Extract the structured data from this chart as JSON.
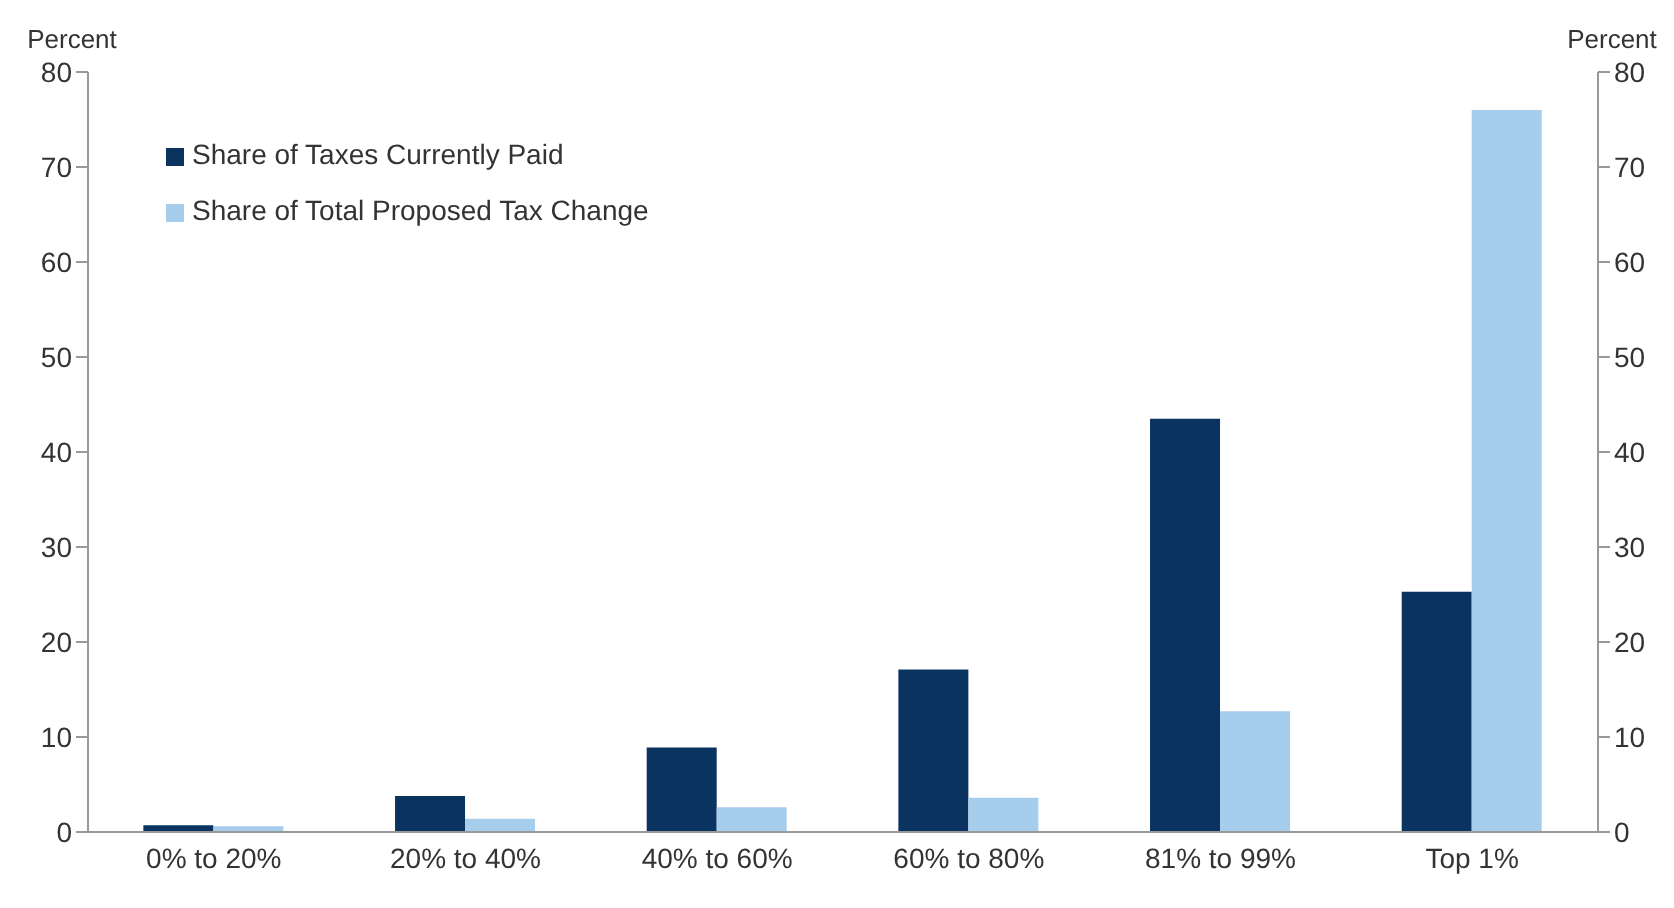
{
  "chart_data": {
    "type": "bar",
    "ylabel": "Percent",
    "y2label": "Percent",
    "categories": [
      "0% to 20%",
      "20% to 40%",
      "40% to 60%",
      "60% to 80%",
      "81% to 99%",
      "Top 1%"
    ],
    "series": [
      {
        "name": "Share of Taxes Currently Paid",
        "color": "#0a3360",
        "values": [
          0.7,
          3.8,
          8.9,
          17.1,
          43.5,
          25.3
        ]
      },
      {
        "name": "Share of Total Proposed Tax Change",
        "color": "#a6cdec",
        "values": [
          0.6,
          1.4,
          2.6,
          3.6,
          12.7,
          76
        ]
      }
    ],
    "ylim": [
      0,
      80
    ],
    "yticks": [
      0,
      10,
      20,
      30,
      40,
      50,
      60,
      70,
      80
    ],
    "y2lim": [
      0,
      80
    ],
    "y2ticks": [
      0,
      10,
      20,
      30,
      40,
      50,
      60,
      70,
      80
    ],
    "grid": false,
    "legend": "top left"
  }
}
